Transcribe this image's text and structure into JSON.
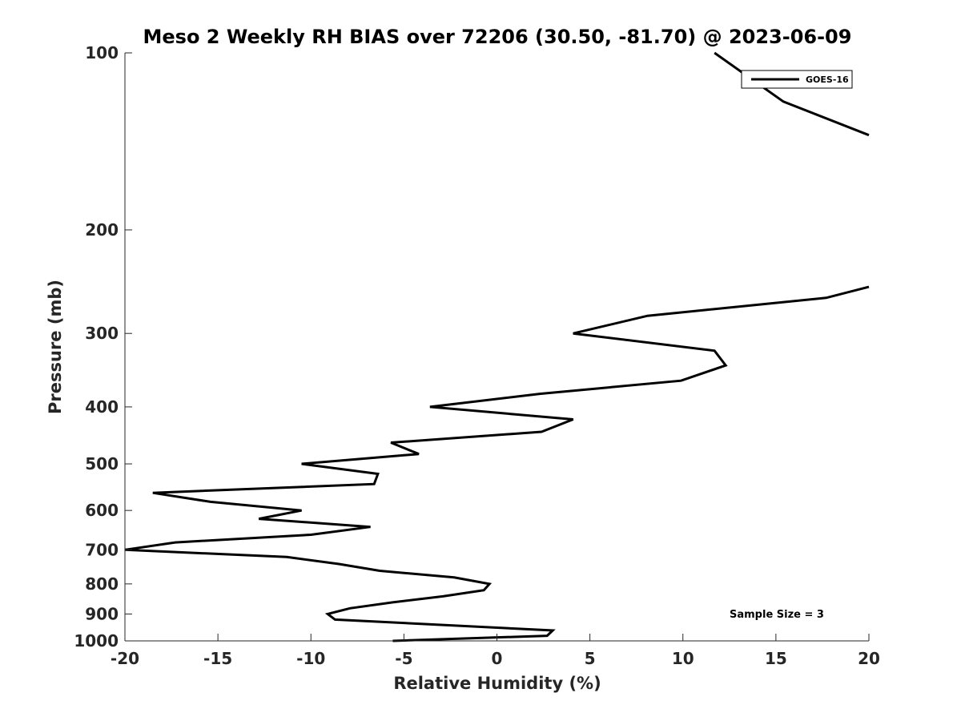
{
  "chart_data": {
    "type": "line",
    "title": "Meso 2 Weekly RH BIAS over 72206 (30.50, -81.70) @ 2023-06-09",
    "xlabel": "Relative Humidity (%)",
    "ylabel": "Pressure (mb)",
    "xlim": [
      -20,
      20
    ],
    "ylim": [
      1000,
      100
    ],
    "y_scale": "log",
    "x_ticks": [
      "-20",
      "-15",
      "-10",
      "-5",
      "0",
      "5",
      "10",
      "15",
      "20"
    ],
    "y_ticks": [
      "100",
      "200",
      "300",
      "400",
      "500",
      "600",
      "700",
      "800",
      "900",
      "1000"
    ],
    "grid": false,
    "legend": {
      "placement": "top-right",
      "entries": [
        "GOES-16"
      ]
    },
    "annotation": "Sample Size = 3",
    "series": [
      {
        "name": "GOES-16",
        "color": "#000000",
        "segments": [
          [
            {
              "x": 11.7,
              "y": 100
            },
            {
              "x": 15.4,
              "y": 121
            },
            {
              "x": 20.0,
              "y": 138
            }
          ],
          [
            {
              "x": 20.0,
              "y": 250
            },
            {
              "x": 17.7,
              "y": 261
            },
            {
              "x": 8.1,
              "y": 280
            },
            {
              "x": 4.1,
              "y": 300
            },
            {
              "x": 11.7,
              "y": 321
            },
            {
              "x": 12.3,
              "y": 340
            },
            {
              "x": 9.9,
              "y": 361
            },
            {
              "x": 2.3,
              "y": 380
            },
            {
              "x": -3.6,
              "y": 400
            },
            {
              "x": 4.1,
              "y": 420
            },
            {
              "x": 2.4,
              "y": 441
            },
            {
              "x": -5.7,
              "y": 460
            },
            {
              "x": -4.2,
              "y": 481
            },
            {
              "x": -10.5,
              "y": 500
            },
            {
              "x": -6.4,
              "y": 520
            },
            {
              "x": -6.6,
              "y": 541
            },
            {
              "x": -18.5,
              "y": 560
            },
            {
              "x": -15.4,
              "y": 580
            },
            {
              "x": -10.5,
              "y": 600
            },
            {
              "x": -12.8,
              "y": 620
            },
            {
              "x": -6.8,
              "y": 640
            },
            {
              "x": -10.0,
              "y": 660
            },
            {
              "x": -17.3,
              "y": 680
            },
            {
              "x": -20.0,
              "y": 700
            },
            {
              "x": -11.3,
              "y": 720
            },
            {
              "x": -8.5,
              "y": 740
            },
            {
              "x": -6.3,
              "y": 760
            },
            {
              "x": -2.3,
              "y": 780
            },
            {
              "x": -0.4,
              "y": 800
            },
            {
              "x": -0.7,
              "y": 820
            },
            {
              "x": -2.9,
              "y": 840
            },
            {
              "x": -5.6,
              "y": 860
            },
            {
              "x": -7.9,
              "y": 880
            },
            {
              "x": -9.1,
              "y": 900
            },
            {
              "x": -8.7,
              "y": 920
            },
            {
              "x": 3.0,
              "y": 960
            },
            {
              "x": 2.7,
              "y": 980
            },
            {
              "x": -5.6,
              "y": 1000
            }
          ]
        ]
      }
    ]
  }
}
